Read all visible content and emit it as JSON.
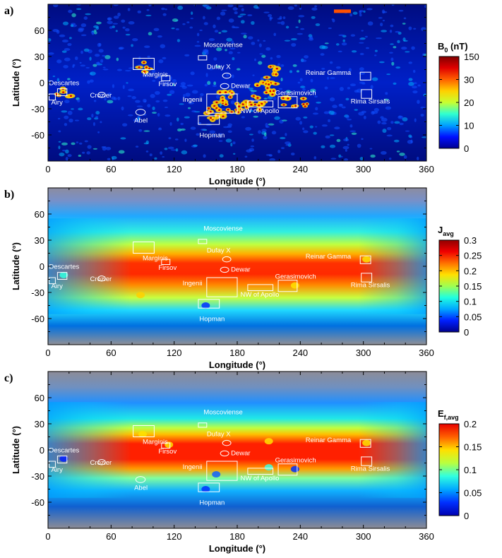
{
  "figure": {
    "panels": [
      {
        "label": "a)",
        "map_style": "field",
        "xlabel": "Longitude (°)",
        "ylabel": "Latitude (°)",
        "x_ticks": [
          "0",
          "60",
          "120",
          "180",
          "240",
          "300",
          "360"
        ],
        "y_ticks": [
          "60",
          "30",
          "0",
          "-30",
          "-60"
        ],
        "colorbar": {
          "title": "B",
          "title_sub": "0",
          "title_suffix": " (nT)",
          "ticks": [
            "150",
            "30",
            "20",
            "10",
            "0"
          ],
          "colors": [
            "#000090",
            "#0010ff",
            "#00a0ff",
            "#30ffd0",
            "#c8ff30",
            "#ffd000",
            "#ff6000",
            "#e00000",
            "#800000"
          ]
        }
      },
      {
        "label": "b)",
        "map_style": "flux",
        "xlabel": "Longitude (°)",
        "ylabel": "Latitude (°)",
        "x_ticks": [
          "0",
          "60",
          "120",
          "180",
          "240",
          "300",
          "360"
        ],
        "y_ticks": [
          "60",
          "30",
          "0",
          "-30",
          "-60"
        ],
        "colorbar": {
          "title": "J",
          "title_sub": "avg",
          "title_suffix": "",
          "ticks": [
            "0.3",
            "0.25",
            "0.2",
            "0.15",
            "0.1",
            "0.05",
            "0"
          ],
          "colors": [
            "#00008c",
            "#0020ff",
            "#00a8ff",
            "#20ffe0",
            "#a0ff50",
            "#ffe000",
            "#ff7000",
            "#f00000",
            "#900000"
          ]
        }
      },
      {
        "label": "c)",
        "map_style": "energy",
        "xlabel": "Longitude (°)",
        "ylabel": "Latitude (°)",
        "x_ticks": [
          "0",
          "60",
          "120",
          "180",
          "240",
          "300",
          "360"
        ],
        "y_ticks": [
          "60",
          "30",
          "0",
          "-30",
          "-60"
        ],
        "colorbar": {
          "title": "E",
          "title_sub": "f,avg",
          "title_suffix": "",
          "ticks": [
            "0.2",
            "0.15",
            "0.1",
            "0.05",
            "0"
          ],
          "colors": [
            "#0000b0",
            "#0030ff",
            "#00a8ff",
            "#30ffe0",
            "#b8ff40",
            "#ffe000",
            "#ff6000",
            "#e80000"
          ]
        }
      }
    ],
    "site_labels": [
      "Moscoviense",
      "Marginis",
      "Dufay X",
      "Reinar Gamma",
      "Descartes",
      "Firsov",
      "Dewar",
      "Crozier",
      "Airy",
      "Ingenii",
      "Gerasimovich",
      "Rima Sirsalis",
      "NW of Apollo",
      "Abel",
      "Hopman"
    ],
    "site_labels_by_panel": [
      [
        "Moscoviense",
        "Marginis",
        "Dufay X",
        "Reinar Gamma",
        "Descartes",
        "Firsov",
        "Dewar",
        "Crozier",
        "Airy",
        "Ingenii",
        "Gerasimovich",
        "Rima Sirsalis",
        "NW of Apollo",
        "Abel",
        "Hopman"
      ],
      [
        "Moscoviense",
        "Marginis",
        "Dufay X",
        "Reinar Gamma",
        "Descartes",
        "Firsov",
        "Dewar",
        "Crozier",
        "Airy",
        "Ingenii",
        "Gerasimovich",
        "Rima Sirsalis",
        "NW of Apollo",
        "Hopman"
      ],
      [
        "Moscoviense",
        "Marginis",
        "Dufay X",
        "Reinar Gamma",
        "Descartes",
        "Firsov",
        "Dewar",
        "Crozier",
        "Airy",
        "Ingenii",
        "Gerasimovich",
        "Rima Sirsalis",
        "NW of Apollo",
        "Abel",
        "Hopman"
      ]
    ]
  },
  "chart_data": [
    {
      "type": "heatmap",
      "panel_label": "a)",
      "xlabel": "Longitude (°)",
      "ylabel": "Latitude (°)",
      "xlim": [
        0,
        360
      ],
      "ylim": [
        -90,
        90
      ],
      "x_ticks": [
        0,
        60,
        120,
        180,
        240,
        300,
        360
      ],
      "y_ticks": [
        -60,
        -30,
        0,
        30,
        60
      ],
      "colorbar_label": "B0 (nT)",
      "colorbar_ticks": [
        0,
        10,
        20,
        30,
        150
      ],
      "annotations": [
        "Moscoviense",
        "Marginis",
        "Dufay X",
        "Reinar Gamma",
        "Descartes",
        "Firsov",
        "Dewar",
        "Crozier",
        "Airy",
        "Ingenii",
        "Gerasimovich",
        "Rima Sirsalis",
        "NW of Apollo",
        "Abel",
        "Hopman"
      ]
    },
    {
      "type": "heatmap",
      "panel_label": "b)",
      "xlabel": "Longitude (°)",
      "ylabel": "Latitude (°)",
      "xlim": [
        0,
        360
      ],
      "ylim": [
        -90,
        90
      ],
      "x_ticks": [
        0,
        60,
        120,
        180,
        240,
        300,
        360
      ],
      "y_ticks": [
        -60,
        -30,
        0,
        30,
        60
      ],
      "colorbar_label": "Javg",
      "colorbar_ticks": [
        0,
        0.05,
        0.1,
        0.15,
        0.2,
        0.25,
        0.3
      ],
      "annotations": [
        "Moscoviense",
        "Marginis",
        "Dufay X",
        "Reinar Gamma",
        "Descartes",
        "Firsov",
        "Dewar",
        "Crozier",
        "Airy",
        "Ingenii",
        "Gerasimovich",
        "Rima Sirsalis",
        "NW of Apollo",
        "Hopman"
      ]
    },
    {
      "type": "heatmap",
      "panel_label": "c)",
      "xlabel": "Longitude (°)",
      "ylabel": "Latitude (°)",
      "xlim": [
        0,
        360
      ],
      "ylim": [
        -90,
        90
      ],
      "x_ticks": [
        0,
        60,
        120,
        180,
        240,
        300,
        360
      ],
      "y_ticks": [
        -60,
        -30,
        0,
        30,
        60
      ],
      "colorbar_label": "Ef,avg",
      "colorbar_ticks": [
        0,
        0.05,
        0.1,
        0.15,
        0.2
      ],
      "annotations": [
        "Moscoviense",
        "Marginis",
        "Dufay X",
        "Reinar Gamma",
        "Descartes",
        "Firsov",
        "Dewar",
        "Crozier",
        "Airy",
        "Ingenii",
        "Gerasimovich",
        "Rima Sirsalis",
        "NW of Apollo",
        "Abel",
        "Hopman"
      ]
    }
  ]
}
